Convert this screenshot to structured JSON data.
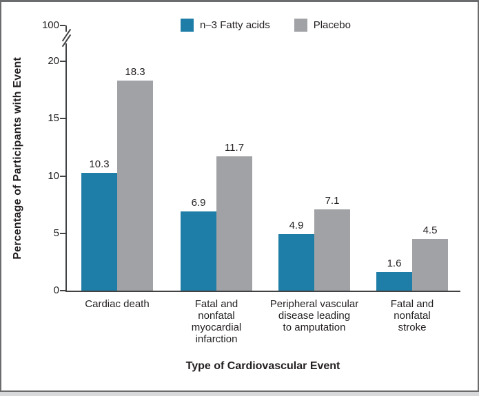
{
  "figure": {
    "y_axis": {
      "label": "Percentage of Participants with Event",
      "ticks": [
        0,
        5,
        10,
        15,
        20
      ],
      "break_top_tick": "100",
      "has_axis_break": true
    },
    "x_axis": {
      "label": "Type of Cardiovascular Event",
      "category_lines": [
        "Cardiac death",
        "Fatal and\nnonfatal\nmyocardial\ninfarction",
        "Peripheral vascular\ndisease leading\nto amputation",
        "Fatal and\nnonfatal\nstroke"
      ]
    },
    "legend": {
      "items": [
        {
          "label": "n–3 Fatty acids",
          "color": "#1f7ea7"
        },
        {
          "label": "Placebo",
          "color": "#a0a2a5"
        }
      ]
    },
    "colors": {
      "n3_bar": "#1f7ea7",
      "placebo_bar": "#a0a2a5",
      "axis": "#414244",
      "text": "#231f20",
      "frame": "#6b6c6e"
    }
  },
  "chart_data": {
    "type": "bar",
    "title": "",
    "categories": [
      "Cardiac death",
      "Fatal and nonfatal myocardial infarction",
      "Peripheral vascular disease leading to amputation",
      "Fatal and nonfatal stroke"
    ],
    "series": [
      {
        "name": "n–3 Fatty acids",
        "color": "#1f7ea7",
        "values": [
          10.3,
          6.9,
          4.9,
          1.6
        ]
      },
      {
        "name": "Placebo",
        "color": "#a0a2a5",
        "values": [
          18.3,
          11.7,
          7.1,
          4.5
        ]
      }
    ],
    "xlabel": "Type of Cardiovascular Event",
    "ylabel": "Percentage of Participants with Event",
    "ylim": [
      0,
      20
    ],
    "yticks": [
      0,
      5,
      10,
      15,
      20
    ],
    "y_axis_break": {
      "present": true,
      "upper_tick": 100
    },
    "legend_position": "top",
    "grid": false,
    "value_labels": true
  }
}
